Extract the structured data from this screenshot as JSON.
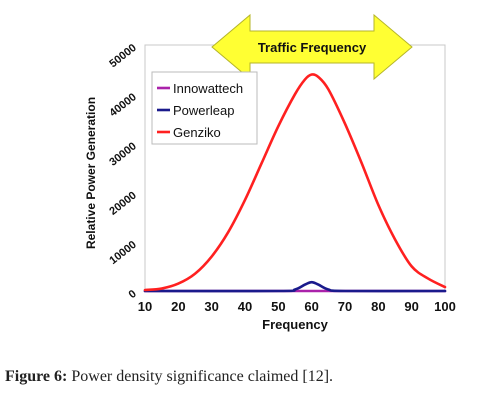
{
  "chart_data": {
    "type": "line",
    "title": "",
    "xlabel": "Frequency",
    "ylabel": "Relative Power Generation",
    "xlim": [
      10,
      100
    ],
    "ylim": [
      0,
      50000
    ],
    "x_ticks": [
      10,
      20,
      30,
      40,
      50,
      60,
      70,
      80,
      90,
      100
    ],
    "x_tick_labels": [
      "10",
      "20",
      "30",
      "40",
      "50",
      "60",
      "70",
      "80",
      "90",
      "100"
    ],
    "y_ticks": [
      0,
      10000,
      20000,
      30000,
      40000,
      50000
    ],
    "y_tick_labels": [
      "0",
      "10000",
      "20000",
      "30000",
      "40000",
      "50000"
    ],
    "grid": false,
    "legend_position": "top-left",
    "annotation": {
      "text": "Traffic Frequency",
      "color": "#ffff33",
      "border_color": "#b5b52a"
    },
    "series": [
      {
        "name": "Innowattech",
        "color": "#aa22aa",
        "x": [
          10,
          20,
          30,
          40,
          50,
          60,
          70,
          80,
          90,
          100
        ],
        "y": [
          0,
          0,
          0,
          0,
          0,
          0,
          0,
          0,
          0,
          0
        ]
      },
      {
        "name": "Powerleap",
        "color": "#1a1a8c",
        "x": [
          10,
          50,
          55,
          58,
          60,
          62,
          65,
          70,
          100
        ],
        "y": [
          0,
          0,
          300,
          1300,
          1800,
          1300,
          300,
          0,
          0
        ]
      },
      {
        "name": "Genziko",
        "color": "#ff2020",
        "x": [
          10,
          15,
          20,
          25,
          30,
          35,
          40,
          45,
          50,
          55,
          58,
          60,
          62,
          65,
          70,
          75,
          80,
          85,
          90,
          95,
          100
        ],
        "y": [
          200,
          500,
          1500,
          3500,
          7000,
          12000,
          18500,
          26000,
          33500,
          40000,
          43000,
          44000,
          43500,
          41000,
          34000,
          26000,
          17500,
          10500,
          5000,
          2500,
          800
        ]
      }
    ]
  },
  "caption": {
    "label": "Figure 6:",
    "text": " Power density significance claimed [12]."
  }
}
